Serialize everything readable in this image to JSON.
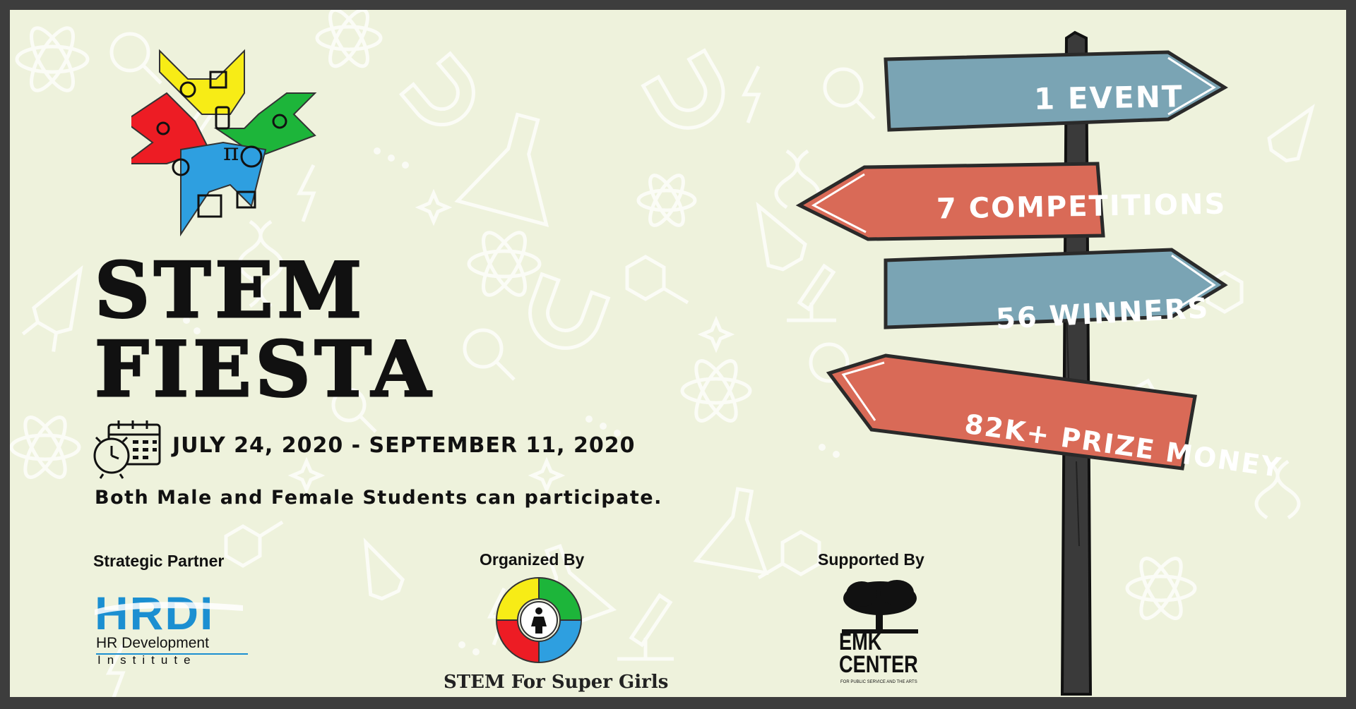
{
  "title": {
    "line1": "STEM",
    "line2": "FIESTA"
  },
  "date_range": "JULY 24, 2020 - SEPTEMBER 11, 2020",
  "participation": "Both Male and Female Students can participate.",
  "signs": [
    {
      "text": "1 EVENT",
      "color": "#7aa4b4",
      "direction": "right"
    },
    {
      "text": "7 COMPETITIONS",
      "color": "#d96a57",
      "direction": "left"
    },
    {
      "text": "56 WINNERS",
      "color": "#7aa4b4",
      "direction": "right"
    },
    {
      "text": "82K+ PRIZE MONEY",
      "color": "#d96a57",
      "direction": "left"
    }
  ],
  "partners": {
    "strategic": {
      "label": "Strategic Partner",
      "logo_text": "HRDI",
      "line1": "HR Development",
      "line2": "Institute"
    },
    "organizer": {
      "label": "Organized By",
      "name": "STEM For Super Girls"
    },
    "supporter": {
      "label": "Supported By",
      "line1": "EMK",
      "line2": "CENTER",
      "tagline": "FOR PUBLIC SERVICE AND THE ARTS"
    }
  },
  "colors": {
    "background": "#eef2dc",
    "frame": "#3d3d3d",
    "sign_blue": "#7aa4b4",
    "sign_red": "#d96a57",
    "post": "#3a3a3a",
    "logo_yellow": "#f7ec16",
    "logo_green": "#1db53a",
    "logo_red": "#ed1c24",
    "logo_blue": "#2e9fe0",
    "hrdi_blue": "#1b8fd1"
  },
  "icons": [
    "calendar-clock-icon",
    "atom-icon",
    "dna-icon",
    "magnet-icon",
    "gear-icon",
    "pi-icon",
    "tree-icon"
  ]
}
